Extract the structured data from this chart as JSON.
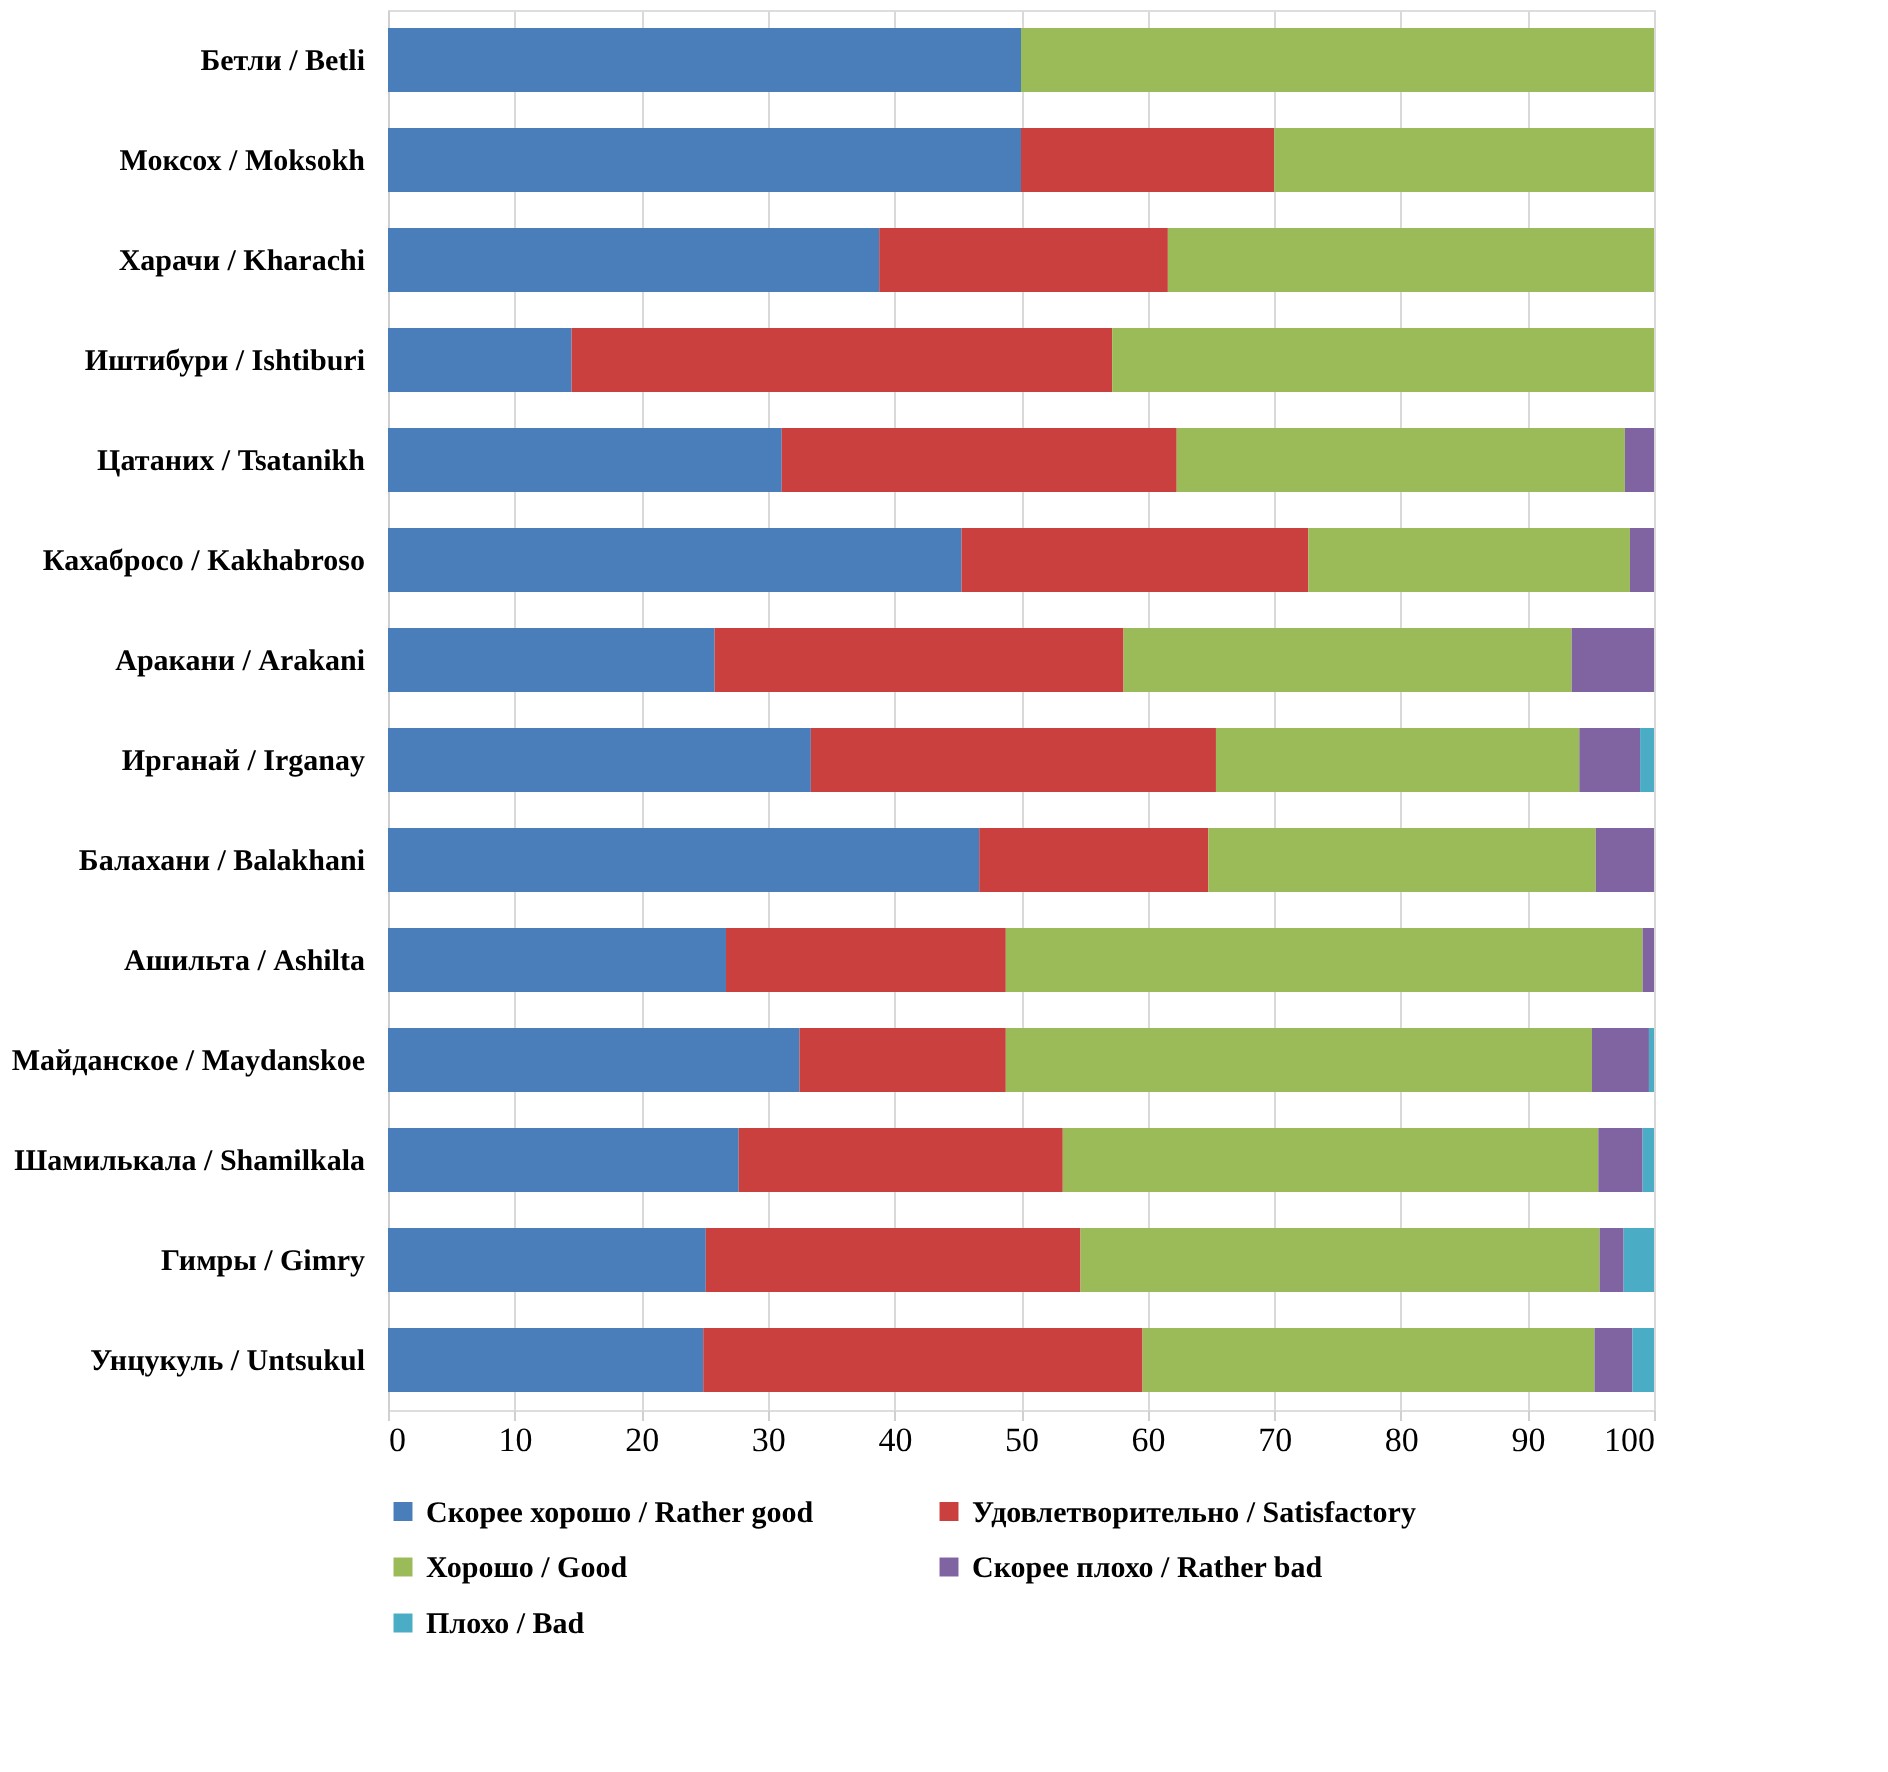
{
  "chart_data": {
    "type": "bar",
    "orientation": "horizontal",
    "stacked": true,
    "categories": [
      "Бетли / Betli",
      "Моксох / Moksokh",
      "Харачи / Kharachi",
      "Иштибури / Ishtiburi",
      "Цатаних / Tsatanikh",
      "Кахабросо / Kakhabroso",
      "Аракани / Arakani",
      "Ирганай / Irganay",
      "Балахани / Balakhani",
      "Ашильта / Ashilta",
      "Майданское / Maydanskoe",
      "Шамилькала / Shamilkala",
      "Гимры / Gimry",
      "Унцукуль / Untsukul"
    ],
    "series": [
      {
        "name": "Скорее хорошо / Rather good",
        "color": "#4a7ebb",
        "values": [
          50,
          50,
          38.8,
          14.5,
          31.1,
          45.3,
          25.8,
          33.4,
          46.7,
          26.7,
          32.5,
          27.7,
          25.1,
          24.9
        ]
      },
      {
        "name": "Удовлетворительно / Satisfactory",
        "color": "#c9403e",
        "values": [
          0,
          20,
          22.8,
          42.7,
          31.2,
          27.4,
          32.3,
          32.0,
          18.1,
          22.1,
          16.3,
          25.6,
          29.6,
          34.7
        ]
      },
      {
        "name": "Хорошо / Good",
        "color": "#9bbb59",
        "values": [
          50,
          30,
          38.4,
          42.8,
          35.4,
          25.4,
          35.4,
          28.7,
          30.6,
          50.3,
          46.3,
          42.3,
          41.0,
          35.7
        ]
      },
      {
        "name": "Скорее плохо / Rather bad",
        "color": "#8064a2",
        "values": [
          0,
          0,
          0,
          0,
          2.3,
          1.9,
          6.5,
          4.8,
          4.6,
          0.9,
          4.5,
          3.5,
          1.9,
          3.0
        ]
      },
      {
        "name": "Плохо / Bad",
        "color": "#4bacc6",
        "values": [
          0,
          0,
          0,
          0,
          0,
          0,
          0,
          1.1,
          0,
          0,
          0.4,
          0.9,
          2.4,
          1.7
        ]
      }
    ],
    "xlim": [
      0,
      100
    ],
    "xticks": [
      0,
      10,
      20,
      30,
      40,
      50,
      60,
      70,
      80,
      90,
      100
    ],
    "grid": "x",
    "legend": "bottom"
  }
}
